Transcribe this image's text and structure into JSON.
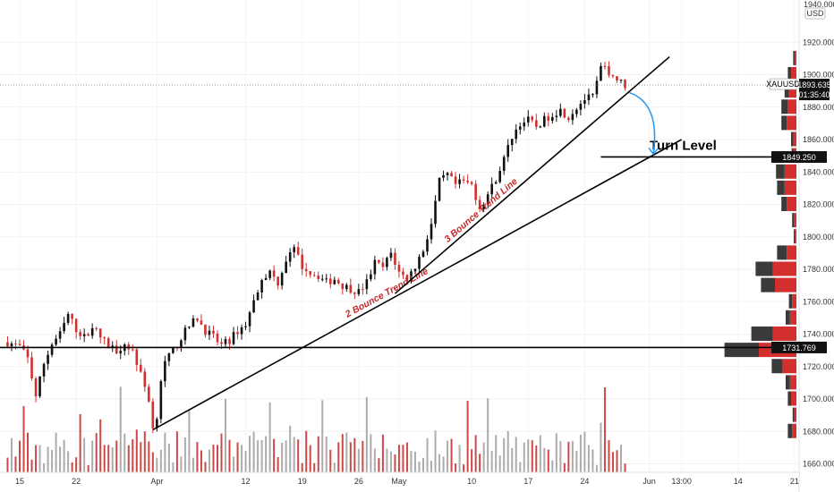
{
  "chart_data": {
    "type": "candlestick",
    "symbol": "XAUUSD",
    "currency_badge": "USD",
    "price_axis": {
      "top_label": "1940.000",
      "ticks": [
        "1920.000",
        "1900.000",
        "1880.000",
        "1860.000",
        "1840.000",
        "1820.000",
        "1800.000",
        "1780.000",
        "1760.000",
        "1740.000",
        "1720.000",
        "1700.000",
        "1680.000",
        "1660.000"
      ],
      "ylim": [
        1655,
        1945
      ]
    },
    "time_axis": {
      "ticks": [
        {
          "label": "15",
          "day": 0
        },
        {
          "label": "22",
          "day": 7
        },
        {
          "label": "Apr",
          "day": 17
        },
        {
          "label": "12",
          "day": 28
        },
        {
          "label": "19",
          "day": 35
        },
        {
          "label": "26",
          "day": 42
        },
        {
          "label": "May",
          "day": 47
        },
        {
          "label": "10",
          "day": 56
        },
        {
          "label": "17",
          "day": 63
        },
        {
          "label": "24",
          "day": 70
        },
        {
          "label": "Jun",
          "day": 78
        },
        {
          "label": "13:00",
          "day": 82
        },
        {
          "label": "14",
          "day": 89
        },
        {
          "label": "21",
          "day": 96
        }
      ]
    },
    "price_path": [
      [
        -1.5,
        1735
      ],
      [
        0,
        1732
      ],
      [
        1,
        1725
      ],
      [
        2,
        1702
      ],
      [
        3,
        1722
      ],
      [
        4,
        1734
      ],
      [
        5,
        1740
      ],
      [
        6,
        1752
      ],
      [
        7,
        1743
      ],
      [
        8,
        1738
      ],
      [
        9,
        1745
      ],
      [
        10,
        1738
      ],
      [
        11,
        1733
      ],
      [
        12,
        1730
      ],
      [
        13,
        1734
      ],
      [
        14,
        1730
      ],
      [
        15,
        1715
      ],
      [
        16,
        1700
      ],
      [
        16.4,
        1680
      ],
      [
        17,
        1690
      ],
      [
        17.5,
        1712
      ],
      [
        18,
        1722
      ],
      [
        19,
        1730
      ],
      [
        20,
        1738
      ],
      [
        21,
        1745
      ],
      [
        22,
        1750
      ],
      [
        23,
        1742
      ],
      [
        24,
        1738
      ],
      [
        25,
        1733
      ],
      [
        26,
        1736
      ],
      [
        27,
        1742
      ],
      [
        28,
        1746
      ],
      [
        29,
        1760
      ],
      [
        30,
        1775
      ],
      [
        31,
        1778
      ],
      [
        32,
        1772
      ],
      [
        33,
        1786
      ],
      [
        34,
        1792
      ],
      [
        35,
        1782
      ],
      [
        36,
        1778
      ],
      [
        37,
        1776
      ],
      [
        38,
        1772
      ],
      [
        39,
        1774
      ],
      [
        40,
        1770
      ],
      [
        41,
        1768
      ],
      [
        42,
        1766
      ],
      [
        43,
        1772
      ],
      [
        44,
        1784
      ],
      [
        45,
        1781
      ],
      [
        46,
        1790
      ],
      [
        47,
        1778
      ],
      [
        48,
        1774
      ],
      [
        49,
        1782
      ],
      [
        50,
        1792
      ],
      [
        51,
        1808
      ],
      [
        52,
        1834
      ],
      [
        53,
        1838
      ],
      [
        54,
        1832
      ],
      [
        55,
        1834
      ],
      [
        56,
        1832
      ],
      [
        57,
        1818
      ],
      [
        58,
        1826
      ],
      [
        59,
        1836
      ],
      [
        60,
        1848
      ],
      [
        61,
        1862
      ],
      [
        62,
        1870
      ],
      [
        63,
        1872
      ],
      [
        64,
        1868
      ],
      [
        65,
        1872
      ],
      [
        66,
        1876
      ],
      [
        67,
        1878
      ],
      [
        68,
        1874
      ],
      [
        69,
        1880
      ],
      [
        70,
        1885
      ],
      [
        71,
        1886
      ],
      [
        72,
        1904
      ],
      [
        73,
        1902
      ],
      [
        74,
        1897
      ],
      [
        75,
        1893.6
      ]
    ],
    "current_price": {
      "value": "1893.635",
      "countdown": "01:35:40",
      "day": 75
    },
    "turn_level": {
      "label": "Turn Level",
      "value": 1849.25,
      "value_label": "1849.250",
      "from_day": 72,
      "to_day": 101
    },
    "support_level": {
      "value": 1731.769,
      "value_label": "1731.769"
    },
    "trend_lines": [
      {
        "name": "2 Bounce Trend Line",
        "start": [
          16.5,
          1681
        ],
        "end": [
          82,
          1860
        ]
      },
      {
        "name": "3 Bounce Trend Line",
        "start": [
          46.5,
          1765
        ],
        "end": [
          80.5,
          1911
        ]
      }
    ],
    "curved_arrow": {
      "from": [
        75.5,
        1889
      ],
      "to": [
        78.5,
        1851
      ]
    },
    "volume_profile": [
      {
        "price": 1910,
        "buy": 3,
        "sell": 3
      },
      {
        "price": 1900,
        "buy": 6,
        "sell": 10
      },
      {
        "price": 1890,
        "buy": 8,
        "sell": 14
      },
      {
        "price": 1880,
        "buy": 12,
        "sell": 16
      },
      {
        "price": 1870,
        "buy": 10,
        "sell": 18
      },
      {
        "price": 1860,
        "buy": 4,
        "sell": 6
      },
      {
        "price": 1850,
        "buy": 3,
        "sell": 6
      },
      {
        "price": 1840,
        "buy": 16,
        "sell": 22
      },
      {
        "price": 1830,
        "buy": 14,
        "sell": 22
      },
      {
        "price": 1820,
        "buy": 10,
        "sell": 18
      },
      {
        "price": 1810,
        "buy": 3,
        "sell": 5
      },
      {
        "price": 1800,
        "buy": 2,
        "sell": 3
      },
      {
        "price": 1790,
        "buy": 18,
        "sell": 18
      },
      {
        "price": 1780,
        "buy": 32,
        "sell": 44
      },
      {
        "price": 1770,
        "buy": 26,
        "sell": 40
      },
      {
        "price": 1760,
        "buy": 6,
        "sell": 8
      },
      {
        "price": 1750,
        "buy": 8,
        "sell": 12
      },
      {
        "price": 1740,
        "buy": 40,
        "sell": 44
      },
      {
        "price": 1730,
        "buy": 64,
        "sell": 70
      },
      {
        "price": 1720,
        "buy": 20,
        "sell": 26
      },
      {
        "price": 1710,
        "buy": 8,
        "sell": 12
      },
      {
        "price": 1700,
        "buy": 6,
        "sell": 10
      },
      {
        "price": 1690,
        "buy": 3,
        "sell": 4
      },
      {
        "price": 1680,
        "buy": 8,
        "sell": 8
      }
    ],
    "colors": {
      "up": "#111111",
      "down": "#d32f2f",
      "volume_up": "#9e9e9e",
      "volume_down": "#c62828",
      "trend_label": "#c62828",
      "arrow": "#2196f3",
      "profile_dark": "#3a3a3a",
      "profile_red": "#d32f2f",
      "profile_dark_light": "#9e9e9e",
      "profile_red_light": "#e57373"
    }
  }
}
